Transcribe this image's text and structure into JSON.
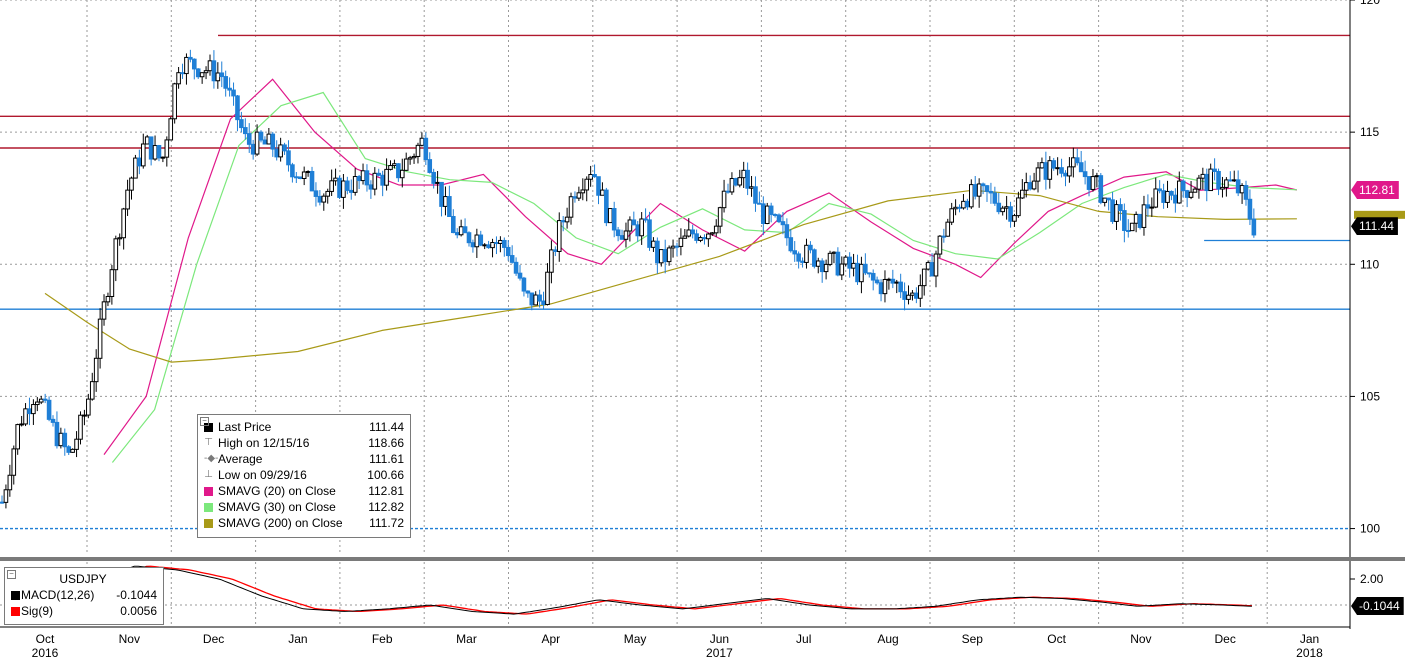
{
  "chart_data": {
    "type": "candlestick",
    "symbol": "USDJPY",
    "y_ticks": [
      "120",
      "115",
      "110",
      "105",
      "100"
    ],
    "ylim": [
      99.0,
      120.0
    ],
    "macd_ticks": [
      "2.00"
    ],
    "x_months": [
      {
        "label": "Oct",
        "sub": "2016"
      },
      {
        "label": "Nov",
        "sub": ""
      },
      {
        "label": "Dec",
        "sub": ""
      },
      {
        "label": "Jan",
        "sub": ""
      },
      {
        "label": "Feb",
        "sub": ""
      },
      {
        "label": "Mar",
        "sub": ""
      },
      {
        "label": "Apr",
        "sub": ""
      },
      {
        "label": "May",
        "sub": ""
      },
      {
        "label": "Jun",
        "sub": "2017"
      },
      {
        "label": "Jul",
        "sub": ""
      },
      {
        "label": "Aug",
        "sub": ""
      },
      {
        "label": "Sep",
        "sub": ""
      },
      {
        "label": "Oct",
        "sub": ""
      },
      {
        "label": "Nov",
        "sub": ""
      },
      {
        "label": "Dec",
        "sub": ""
      },
      {
        "label": "Jan",
        "sub": "2018"
      }
    ],
    "horizontal_levels": [
      {
        "value": 118.66,
        "color": "#b0182e"
      },
      {
        "value": 115.6,
        "color": "#b0182e"
      },
      {
        "value": 114.4,
        "color": "#b0182e"
      },
      {
        "value": 108.3,
        "color": "#1f7fd6"
      },
      {
        "value": 100.0,
        "color": "#1f7fd6"
      }
    ],
    "price_path": [
      [
        0,
        101.0
      ],
      [
        0.2,
        104.0
      ],
      [
        0.4,
        105.2
      ],
      [
        0.6,
        103.8
      ],
      [
        0.8,
        102.7
      ],
      [
        1.0,
        104.5
      ],
      [
        1.3,
        110.0
      ],
      [
        1.5,
        113.0
      ],
      [
        1.7,
        114.6
      ],
      [
        1.9,
        113.9
      ],
      [
        2.1,
        117.7
      ],
      [
        2.3,
        117.5
      ],
      [
        2.6,
        117.2
      ],
      [
        2.9,
        114.6
      ],
      [
        3.2,
        114.5
      ],
      [
        3.5,
        113.5
      ],
      [
        3.8,
        112.7
      ],
      [
        4.1,
        113.0
      ],
      [
        4.4,
        113.2
      ],
      [
        4.7,
        113.5
      ],
      [
        5.0,
        114.7
      ],
      [
        5.2,
        112.6
      ],
      [
        5.4,
        111.0
      ],
      [
        5.7,
        111.1
      ],
      [
        6.0,
        110.6
      ],
      [
        6.2,
        108.7
      ],
      [
        6.4,
        108.6
      ],
      [
        6.6,
        111.2
      ],
      [
        6.8,
        112.9
      ],
      [
        7.0,
        113.7
      ],
      [
        7.2,
        111.7
      ],
      [
        7.4,
        111.2
      ],
      [
        7.6,
        111.5
      ],
      [
        7.8,
        110.1
      ],
      [
        8.0,
        110.6
      ],
      [
        8.2,
        111.2
      ],
      [
        8.4,
        111.3
      ],
      [
        8.6,
        112.7
      ],
      [
        8.8,
        113.3
      ],
      [
        9.0,
        112.0
      ],
      [
        9.2,
        111.4
      ],
      [
        9.5,
        110.4
      ],
      [
        9.8,
        110.1
      ],
      [
        10.1,
        109.8
      ],
      [
        10.4,
        109.2
      ],
      [
        10.6,
        109.3
      ],
      [
        10.8,
        108.8
      ],
      [
        11.0,
        109.7
      ],
      [
        11.2,
        111.5
      ],
      [
        11.4,
        112.6
      ],
      [
        11.7,
        112.6
      ],
      [
        12.0,
        112.0
      ],
      [
        12.2,
        113.3
      ],
      [
        12.4,
        113.6
      ],
      [
        12.6,
        113.8
      ],
      [
        12.8,
        113.5
      ],
      [
        13.0,
        112.9
      ],
      [
        13.2,
        111.9
      ],
      [
        13.4,
        111.2
      ],
      [
        13.6,
        112.3
      ],
      [
        13.8,
        112.7
      ],
      [
        14.0,
        112.8
      ],
      [
        14.2,
        113.1
      ],
      [
        14.4,
        113.2
      ],
      [
        14.6,
        113.0
      ],
      [
        14.7,
        112.7
      ],
      [
        14.85,
        111.44
      ]
    ],
    "macd_path": [
      [
        1.2,
        2.0
      ],
      [
        1.6,
        3.0
      ],
      [
        2.1,
        2.7
      ],
      [
        2.6,
        2.0
      ],
      [
        3.1,
        0.7
      ],
      [
        3.6,
        -0.3
      ],
      [
        4.1,
        -0.5
      ],
      [
        4.6,
        -0.3
      ],
      [
        5.1,
        0.0
      ],
      [
        5.6,
        -0.5
      ],
      [
        6.1,
        -0.7
      ],
      [
        6.6,
        -0.2
      ],
      [
        7.1,
        0.4
      ],
      [
        7.6,
        0.0
      ],
      [
        8.1,
        -0.3
      ],
      [
        8.6,
        0.1
      ],
      [
        9.1,
        0.5
      ],
      [
        9.6,
        0.0
      ],
      [
        10.1,
        -0.3
      ],
      [
        10.6,
        -0.3
      ],
      [
        11.1,
        -0.1
      ],
      [
        11.6,
        0.4
      ],
      [
        12.1,
        0.6
      ],
      [
        12.6,
        0.5
      ],
      [
        13.1,
        0.2
      ],
      [
        13.5,
        -0.1
      ],
      [
        14.0,
        0.1
      ],
      [
        14.5,
        0.0
      ],
      [
        14.85,
        -0.1
      ]
    ],
    "series_lines": [
      {
        "name": "SMAVG (20) on Close",
        "color": "#e0188a",
        "path": [
          [
            0.7,
            102.8
          ],
          [
            1.2,
            105.0
          ],
          [
            1.7,
            111.0
          ],
          [
            2.2,
            115.5
          ],
          [
            2.7,
            117.0
          ],
          [
            3.2,
            115.0
          ],
          [
            3.7,
            113.6
          ],
          [
            4.2,
            113.0
          ],
          [
            4.7,
            113.0
          ],
          [
            5.2,
            113.4
          ],
          [
            5.7,
            111.8
          ],
          [
            6.2,
            110.4
          ],
          [
            6.6,
            110.0
          ],
          [
            6.9,
            111.0
          ],
          [
            7.3,
            112.3
          ],
          [
            7.8,
            111.3
          ],
          [
            8.3,
            110.5
          ],
          [
            8.8,
            112.0
          ],
          [
            9.3,
            112.7
          ],
          [
            9.8,
            111.6
          ],
          [
            10.3,
            110.6
          ],
          [
            10.8,
            110.0
          ],
          [
            11.1,
            109.5
          ],
          [
            11.5,
            110.8
          ],
          [
            11.9,
            112.0
          ],
          [
            12.3,
            112.6
          ],
          [
            12.8,
            113.3
          ],
          [
            13.3,
            113.5
          ],
          [
            13.7,
            112.8
          ],
          [
            14.2,
            112.9
          ],
          [
            14.6,
            113.0
          ],
          [
            14.85,
            112.81
          ]
        ]
      },
      {
        "name": "SMAVG (30) on Close",
        "color": "#7ce87c",
        "path": [
          [
            0.8,
            102.5
          ],
          [
            1.3,
            104.5
          ],
          [
            1.8,
            110.0
          ],
          [
            2.3,
            114.5
          ],
          [
            2.8,
            116.0
          ],
          [
            3.3,
            116.5
          ],
          [
            3.8,
            114.0
          ],
          [
            4.3,
            113.5
          ],
          [
            4.8,
            113.2
          ],
          [
            5.3,
            113.1
          ],
          [
            5.8,
            112.3
          ],
          [
            6.3,
            111.0
          ],
          [
            6.8,
            110.4
          ],
          [
            7.3,
            111.4
          ],
          [
            7.8,
            112.1
          ],
          [
            8.3,
            111.3
          ],
          [
            8.8,
            111.2
          ],
          [
            9.3,
            112.3
          ],
          [
            9.8,
            111.9
          ],
          [
            10.3,
            110.9
          ],
          [
            10.8,
            110.4
          ],
          [
            11.3,
            110.2
          ],
          [
            11.8,
            111.2
          ],
          [
            12.3,
            112.3
          ],
          [
            12.8,
            112.9
          ],
          [
            13.3,
            113.4
          ],
          [
            13.8,
            113.1
          ],
          [
            14.3,
            112.9
          ],
          [
            14.85,
            112.82
          ]
        ]
      },
      {
        "name": "SMAVG (200) on Close",
        "color": "#a89a18",
        "path": [
          [
            0.0,
            108.9
          ],
          [
            0.5,
            107.8
          ],
          [
            1.0,
            106.8
          ],
          [
            1.5,
            106.3
          ],
          [
            2.0,
            106.4
          ],
          [
            3.0,
            106.7
          ],
          [
            4.0,
            107.5
          ],
          [
            5.0,
            108.0
          ],
          [
            6.0,
            108.5
          ],
          [
            7.0,
            109.4
          ],
          [
            8.0,
            110.3
          ],
          [
            9.0,
            111.5
          ],
          [
            10.0,
            112.4
          ],
          [
            11.0,
            112.8
          ],
          [
            11.8,
            112.6
          ],
          [
            12.5,
            112.0
          ],
          [
            13.2,
            111.8
          ],
          [
            14.0,
            111.7
          ],
          [
            14.85,
            111.72
          ]
        ]
      }
    ],
    "macd_series": [
      {
        "name": "MACD(12,26)",
        "color": "#000000"
      },
      {
        "name": "Sig(9)",
        "color": "#ff0000"
      }
    ],
    "legend_placement": "bottom-left",
    "grid": true
  },
  "legend": {
    "rows": [
      {
        "label": "Last Price",
        "value": "111.44",
        "color": "#000000",
        "glyph": ""
      },
      {
        "label": "High on 12/15/16",
        "value": "118.66",
        "color": "",
        "glyph": "⊤"
      },
      {
        "label": "Average",
        "value": "111.61",
        "color": "",
        "glyph": "-◆-"
      },
      {
        "label": "Low on 09/29/16",
        "value": "100.66",
        "color": "",
        "glyph": "⊥"
      },
      {
        "label": "SMAVG (20) on Close",
        "value": "112.81",
        "color": "#e0188a",
        "glyph": ""
      },
      {
        "label": "SMAVG (30) on Close",
        "value": "112.82",
        "color": "#7ce87c",
        "glyph": ""
      },
      {
        "label": "SMAVG (200) on Close",
        "value": "111.72",
        "color": "#a89a18",
        "glyph": ""
      }
    ]
  },
  "macd_legend": {
    "title": "USDJPY",
    "rows": [
      {
        "label": "MACD(12,26)",
        "value": "-0.1044",
        "color": "#000000"
      },
      {
        "label": "Sig(9)",
        "value": "0.0056",
        "color": "#ff0000"
      }
    ]
  },
  "price_tags": {
    "sma20": {
      "text": "112.81",
      "value": 112.81,
      "color": "#e0188a",
      "text_color": "#ffffff"
    },
    "last": {
      "text": "111.44",
      "value": 111.44,
      "color": "#000000",
      "text_color": "#ffffff"
    },
    "macd": {
      "text": "-0.1044",
      "color": "#000000",
      "text_color": "#ffffff"
    }
  }
}
